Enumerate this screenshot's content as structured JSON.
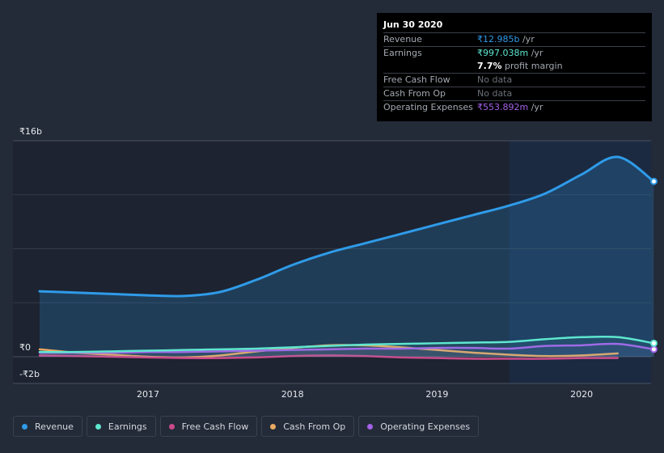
{
  "tooltip": {
    "date": "Jun 30 2020",
    "rows": [
      {
        "label": "Revenue",
        "value": "₹12.985b",
        "unit": " /yr",
        "color": "#2f9be8"
      },
      {
        "label": "Earnings",
        "value": "₹997.038m",
        "unit": " /yr",
        "color": "#5ee7cf"
      },
      {
        "label": "",
        "value": "7.7%",
        "unit": " profit margin",
        "color": "#ffffff"
      },
      {
        "label": "Free Cash Flow",
        "value": "No data",
        "unit": "",
        "color": "#6c7078"
      },
      {
        "label": "Cash From Op",
        "value": "No data",
        "unit": "",
        "color": "#6c7078"
      },
      {
        "label": "Operating Expenses",
        "value": "₹553.892m",
        "unit": " /yr",
        "color": "#a461e8"
      }
    ]
  },
  "chart_data": {
    "type": "line",
    "ylim": [
      -2,
      16
    ],
    "y_tick_labels": {
      "top": "₹16b",
      "zero": "₹0",
      "bottom": "-₹2b"
    },
    "x_ticks": [
      {
        "label": "2017",
        "x": 2017.0
      },
      {
        "label": "2018",
        "x": 2018.0
      },
      {
        "label": "2019",
        "x": 2019.0
      },
      {
        "label": "2020",
        "x": 2020.0
      }
    ],
    "x_range": [
      2016.1,
      2020.5
    ],
    "shaded_from": 2019.5,
    "series": [
      {
        "name": "Revenue",
        "color": "#2f9be8",
        "area": true,
        "points": [
          [
            2016.25,
            4.85
          ],
          [
            2016.5,
            4.75
          ],
          [
            2016.75,
            4.65
          ],
          [
            2017.0,
            4.55
          ],
          [
            2017.25,
            4.5
          ],
          [
            2017.5,
            4.8
          ],
          [
            2017.75,
            5.7
          ],
          [
            2018.0,
            6.8
          ],
          [
            2018.25,
            7.7
          ],
          [
            2018.5,
            8.4
          ],
          [
            2018.75,
            9.1
          ],
          [
            2019.0,
            9.8
          ],
          [
            2019.25,
            10.5
          ],
          [
            2019.5,
            11.2
          ],
          [
            2019.75,
            12.1
          ],
          [
            2020.0,
            13.5
          ],
          [
            2020.25,
            14.8
          ],
          [
            2020.5,
            12.99
          ]
        ]
      },
      {
        "name": "Earnings",
        "color": "#5ee7cf",
        "area": false,
        "points": [
          [
            2016.25,
            0.35
          ],
          [
            2016.5,
            0.35
          ],
          [
            2016.75,
            0.4
          ],
          [
            2017.0,
            0.45
          ],
          [
            2017.25,
            0.5
          ],
          [
            2017.5,
            0.55
          ],
          [
            2017.75,
            0.6
          ],
          [
            2018.0,
            0.7
          ],
          [
            2018.25,
            0.8
          ],
          [
            2018.5,
            0.9
          ],
          [
            2018.75,
            0.95
          ],
          [
            2019.0,
            1.0
          ],
          [
            2019.25,
            1.05
          ],
          [
            2019.5,
            1.1
          ],
          [
            2019.75,
            1.3
          ],
          [
            2020.0,
            1.45
          ],
          [
            2020.25,
            1.45
          ],
          [
            2020.5,
            1.0
          ]
        ]
      },
      {
        "name": "Free Cash Flow",
        "color": "#c94a8a",
        "area": false,
        "points": [
          [
            2016.25,
            0.1
          ],
          [
            2016.5,
            0.05
          ],
          [
            2016.75,
            0.0
          ],
          [
            2017.0,
            -0.05
          ],
          [
            2017.25,
            -0.1
          ],
          [
            2017.5,
            -0.1
          ],
          [
            2017.75,
            -0.05
          ],
          [
            2018.0,
            0.05
          ],
          [
            2018.25,
            0.1
          ],
          [
            2018.5,
            0.05
          ],
          [
            2018.75,
            -0.05
          ],
          [
            2019.0,
            -0.1
          ],
          [
            2019.25,
            -0.15
          ],
          [
            2019.5,
            -0.15
          ],
          [
            2019.75,
            -0.15
          ],
          [
            2020.0,
            -0.1
          ],
          [
            2020.25,
            -0.1
          ]
        ]
      },
      {
        "name": "Cash From Op",
        "color": "#e8a961",
        "area": false,
        "points": [
          [
            2016.25,
            0.55
          ],
          [
            2016.5,
            0.3
          ],
          [
            2016.75,
            0.15
          ],
          [
            2017.0,
            0.0
          ],
          [
            2017.25,
            -0.05
          ],
          [
            2017.5,
            0.1
          ],
          [
            2017.75,
            0.4
          ],
          [
            2018.0,
            0.65
          ],
          [
            2018.25,
            0.85
          ],
          [
            2018.5,
            0.85
          ],
          [
            2018.75,
            0.7
          ],
          [
            2019.0,
            0.5
          ],
          [
            2019.25,
            0.3
          ],
          [
            2019.5,
            0.15
          ],
          [
            2019.75,
            0.05
          ],
          [
            2020.0,
            0.1
          ],
          [
            2020.25,
            0.25
          ]
        ]
      },
      {
        "name": "Operating Expenses",
        "color": "#a461e8",
        "area": false,
        "points": [
          [
            2016.25,
            0.3
          ],
          [
            2016.5,
            0.3
          ],
          [
            2016.75,
            0.3
          ],
          [
            2017.0,
            0.35
          ],
          [
            2017.25,
            0.35
          ],
          [
            2017.5,
            0.4
          ],
          [
            2017.75,
            0.45
          ],
          [
            2018.0,
            0.5
          ],
          [
            2018.25,
            0.55
          ],
          [
            2018.5,
            0.6
          ],
          [
            2018.75,
            0.6
          ],
          [
            2019.0,
            0.65
          ],
          [
            2019.25,
            0.65
          ],
          [
            2019.5,
            0.6
          ],
          [
            2019.75,
            0.8
          ],
          [
            2020.0,
            0.85
          ],
          [
            2020.25,
            0.95
          ],
          [
            2020.5,
            0.55
          ]
        ]
      }
    ]
  },
  "legend": [
    {
      "label": "Revenue",
      "color": "#2f9be8"
    },
    {
      "label": "Earnings",
      "color": "#5ee7cf"
    },
    {
      "label": "Free Cash Flow",
      "color": "#c94a8a"
    },
    {
      "label": "Cash From Op",
      "color": "#e8a961"
    },
    {
      "label": "Operating Expenses",
      "color": "#a461e8"
    }
  ]
}
